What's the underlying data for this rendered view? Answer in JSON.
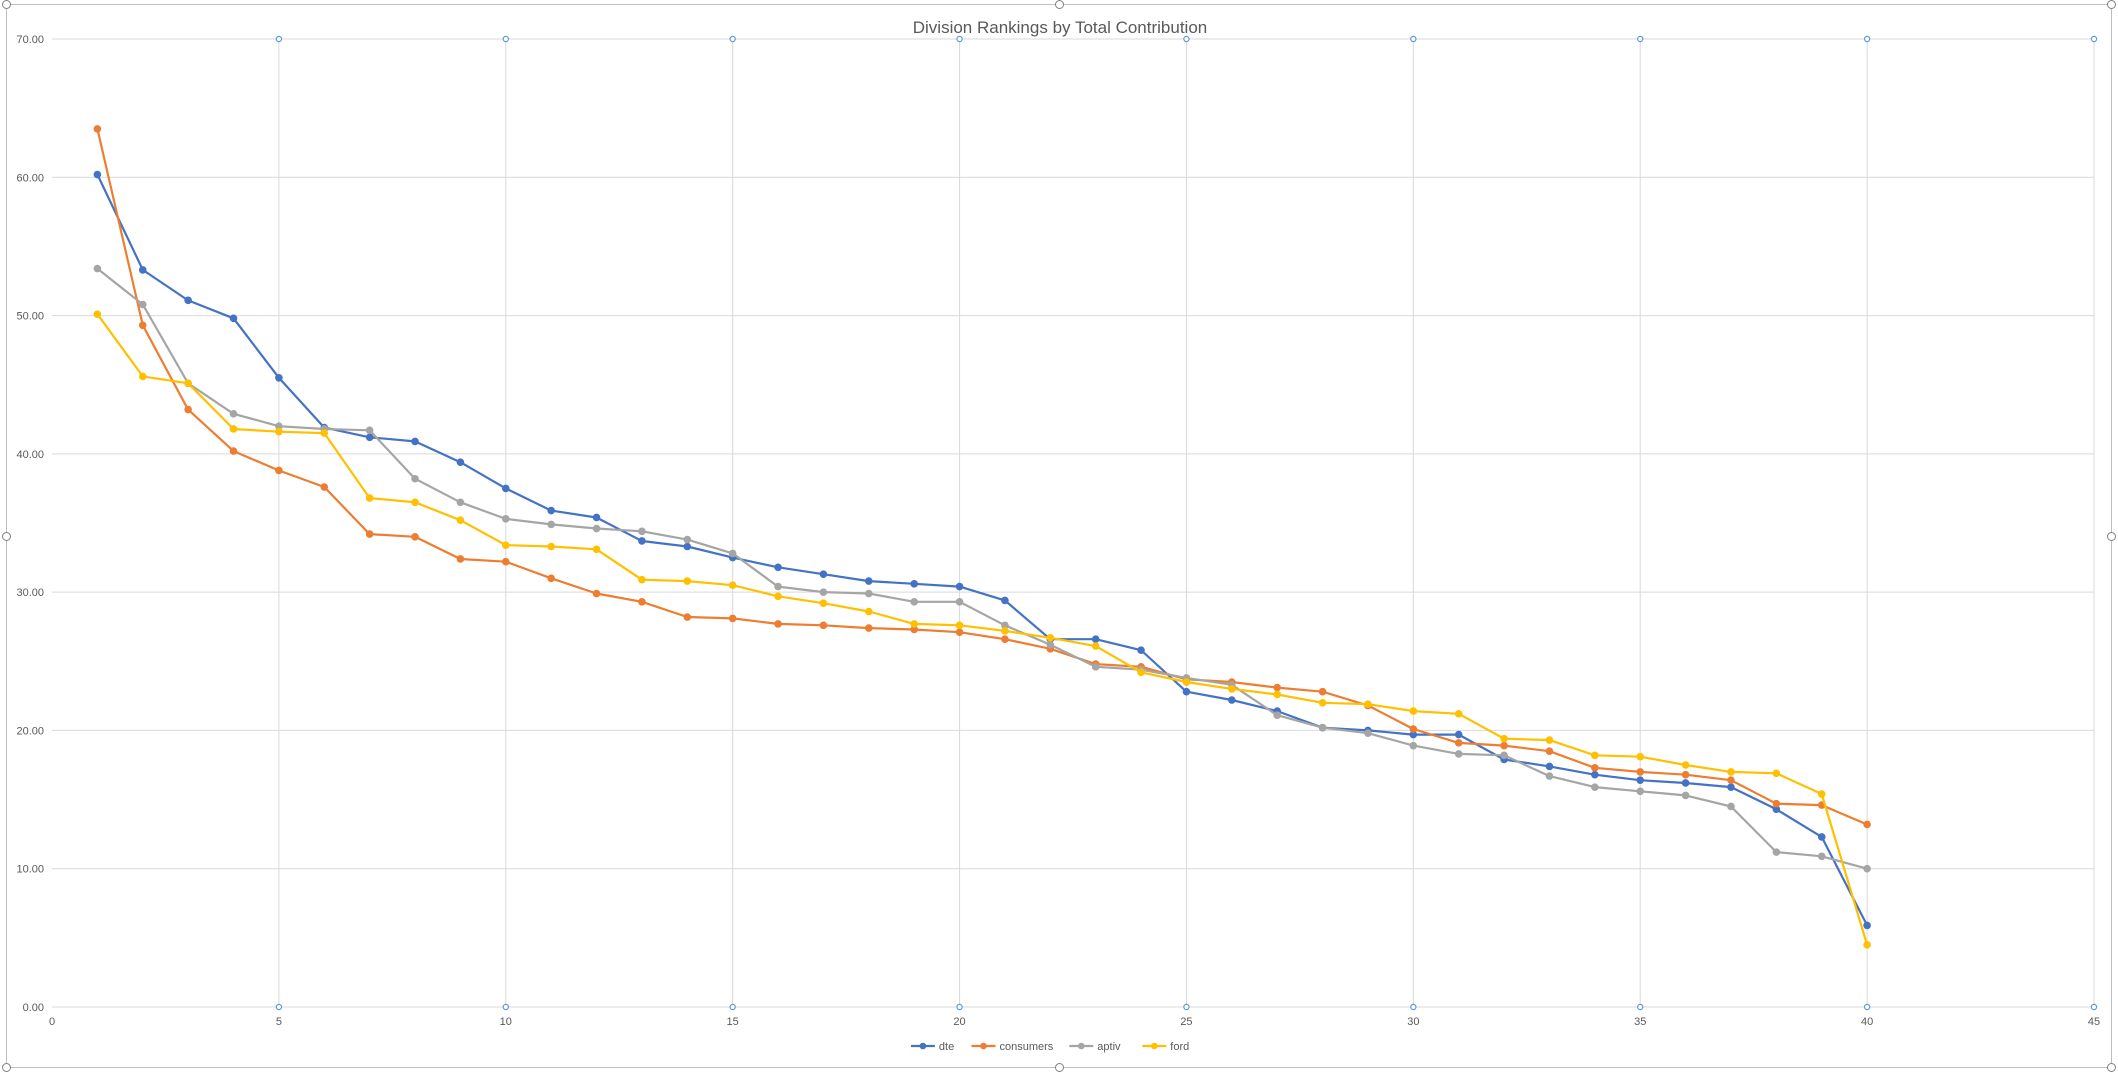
{
  "chart_data": {
    "type": "line",
    "title": "Division Rankings by Total Contribution",
    "xlabel": "",
    "ylabel": "",
    "xlim": [
      0,
      45
    ],
    "ylim": [
      0,
      70
    ],
    "x_ticks": [
      0,
      5,
      10,
      15,
      20,
      25,
      30,
      35,
      40,
      45
    ],
    "y_ticks": [
      "0.00",
      "10.00",
      "20.00",
      "30.00",
      "40.00",
      "50.00",
      "60.00",
      "70.00"
    ],
    "grid": true,
    "legend_position": "bottom",
    "x": [
      1,
      2,
      3,
      4,
      5,
      6,
      7,
      8,
      9,
      10,
      11,
      12,
      13,
      14,
      15,
      16,
      17,
      18,
      19,
      20,
      21,
      22,
      23,
      24,
      25,
      26,
      27,
      28,
      29,
      30,
      31,
      32,
      33,
      34,
      35,
      36,
      37,
      38,
      39,
      40
    ],
    "series": [
      {
        "name": "dte",
        "color": "#4472c4",
        "values": [
          60.2,
          53.3,
          51.1,
          49.8,
          45.5,
          41.9,
          41.2,
          40.9,
          39.4,
          37.5,
          35.9,
          35.4,
          33.7,
          33.3,
          32.5,
          31.8,
          31.3,
          30.8,
          30.6,
          30.4,
          29.4,
          26.6,
          26.6,
          25.8,
          22.8,
          22.2,
          21.4,
          20.2,
          20.0,
          19.7,
          19.7,
          17.9,
          17.4,
          16.8,
          16.4,
          16.2,
          15.9,
          14.3,
          12.3,
          5.9
        ]
      },
      {
        "name": "consumers",
        "color": "#ed7d31",
        "values": [
          63.5,
          49.3,
          43.2,
          40.2,
          38.8,
          37.6,
          34.2,
          34.0,
          32.4,
          32.2,
          31.0,
          29.9,
          29.3,
          28.2,
          28.1,
          27.7,
          27.6,
          27.4,
          27.3,
          27.1,
          26.6,
          25.9,
          24.8,
          24.6,
          23.7,
          23.5,
          23.1,
          22.8,
          21.8,
          20.1,
          19.1,
          18.9,
          18.5,
          17.3,
          17.0,
          16.8,
          16.4,
          14.7,
          14.6,
          13.2
        ]
      },
      {
        "name": "aptiv",
        "color": "#a5a5a5",
        "values": [
          53.4,
          50.8,
          45.1,
          42.9,
          42.0,
          41.8,
          41.7,
          38.2,
          36.5,
          35.3,
          34.9,
          34.6,
          34.4,
          33.8,
          32.8,
          30.4,
          30.0,
          29.9,
          29.3,
          29.3,
          27.6,
          26.2,
          24.6,
          24.4,
          23.8,
          23.3,
          21.1,
          20.2,
          19.8,
          18.9,
          18.3,
          18.2,
          16.7,
          15.9,
          15.6,
          15.3,
          14.5,
          11.2,
          10.9,
          10.0
        ]
      },
      {
        "name": "ford",
        "color": "#ffc000",
        "values": [
          50.1,
          45.6,
          45.1,
          41.8,
          41.6,
          41.5,
          36.8,
          36.5,
          35.2,
          33.4,
          33.3,
          33.1,
          30.9,
          30.8,
          30.5,
          29.7,
          29.2,
          28.6,
          27.7,
          27.6,
          27.2,
          26.7,
          26.1,
          24.2,
          23.5,
          23.0,
          22.6,
          22.0,
          21.9,
          21.4,
          21.2,
          19.4,
          19.3,
          18.2,
          18.1,
          17.5,
          17.0,
          16.9,
          15.4,
          4.5
        ]
      }
    ]
  }
}
